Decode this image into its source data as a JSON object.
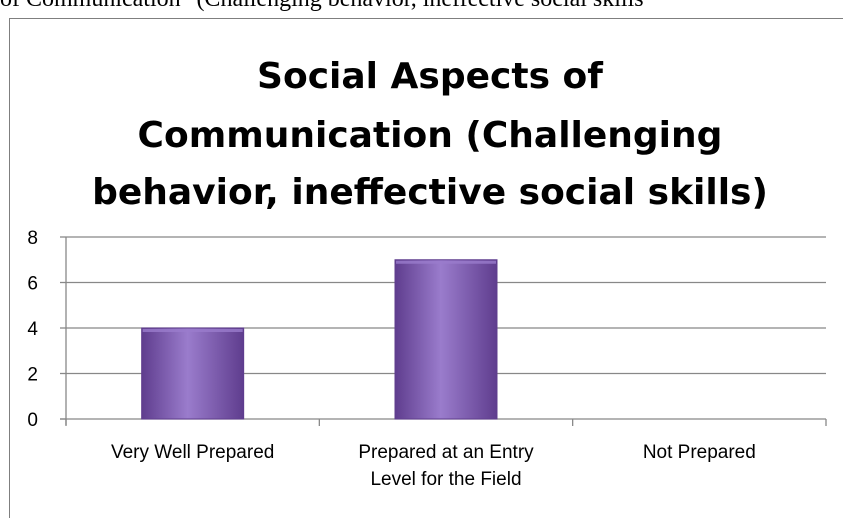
{
  "page": {
    "caption": "of Communication\" (Challenging behavior, ineffective social skills"
  },
  "chart_data": {
    "type": "bar",
    "title_lines": [
      "Social Aspects of",
      "Communication (Challenging",
      "behavior, ineffective social skills)"
    ],
    "categories": [
      [
        "Very Well Prepared"
      ],
      [
        "Prepared at an Entry",
        "Level for the Field"
      ],
      [
        "Not Prepared"
      ]
    ],
    "values": [
      4,
      7,
      0
    ],
    "ylim": [
      0,
      8
    ],
    "yticks": [
      0,
      2,
      4,
      6,
      8
    ],
    "grid": true,
    "bar_color": "#7b55ad",
    "bar_color_light": "#9a7ccc",
    "bar_color_dark": "#5f3d8e",
    "grid_color": "#888888",
    "legend": "none"
  }
}
